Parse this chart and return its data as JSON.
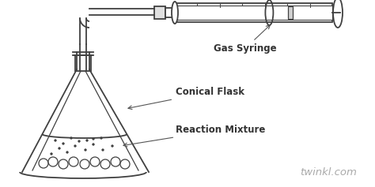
{
  "bg_color": "#ffffff",
  "line_color": "#404040",
  "label_color": "#333333",
  "twinkl_color": "#aaaaaa",
  "label_gas_syringe": "Gas Syringe",
  "label_conical_flask": "Conical Flask",
  "label_reaction_mixture": "Reaction Mixture",
  "label_twinkl": "twinkl.com",
  "figsize": [
    4.74,
    2.37
  ],
  "dpi": 100
}
